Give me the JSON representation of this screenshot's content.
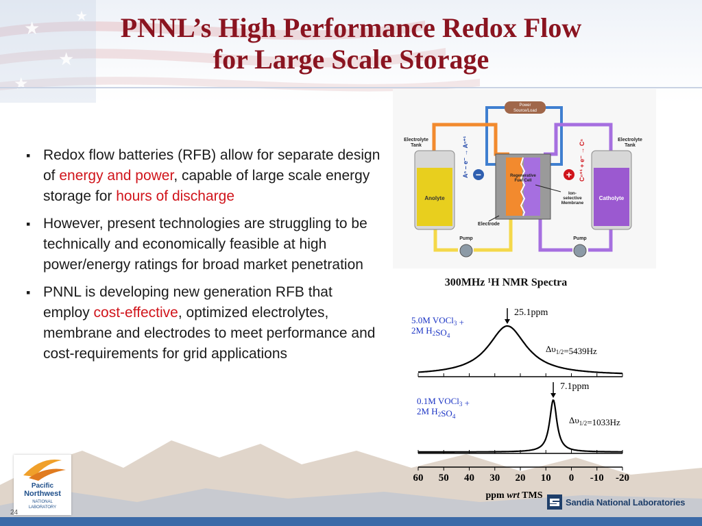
{
  "slide": {
    "title_line1": "PNNL’s High Performance Redox Flow",
    "title_line2": "for Large Scale Storage",
    "page_number": "24"
  },
  "bullets": [
    {
      "parts": [
        {
          "text": "Redox flow batteries (RFB) allow for separate design of ",
          "highlight": false
        },
        {
          "text": "energy and power",
          "highlight": true
        },
        {
          "text": ", capable of large scale energy storage for ",
          "highlight": false
        },
        {
          "text": "hours of discharge",
          "highlight": true
        }
      ]
    },
    {
      "parts": [
        {
          "text": "However, present technologies are struggling to be technically and economically feasible at high power/energy ratings for broad market penetration",
          "highlight": false
        }
      ]
    },
    {
      "parts": [
        {
          "text": "PNNL is developing new generation RFB that employ ",
          "highlight": false
        },
        {
          "text": "cost-effective",
          "highlight": true
        },
        {
          "text": ", optimized electrolytes, membrane and electrodes to meet performance and cost-requirements for grid applications",
          "highlight": false
        }
      ]
    }
  ],
  "diagram": {
    "power_label_1": "Power",
    "power_label_2": "Source/Load",
    "left_tank_label_1": "Electrolyte",
    "left_tank_label_2": "Tank",
    "right_tank_label_1": "Electrolyte",
    "right_tank_label_2": "Tank",
    "anolyte": "Anolyte",
    "catholyte": "Catholyte",
    "cell_label_1": "Regenerative",
    "cell_label_2": "Fuel Cell",
    "membrane_label_1": "Ion-",
    "membrane_label_2": "selective",
    "membrane_label_3": "Membrane",
    "electrode": "Electrode",
    "pump_left": "Pump",
    "pump_right": "Pump",
    "anode_reaction": "Aⁿ – e⁻ → Aⁿ⁺¹",
    "cathode_reaction": "Cⁿ⁺¹ + e⁻ → Cⁿ",
    "minus_sign": "−",
    "plus_sign": "+",
    "colors": {
      "anolyte": "#e8cf1e",
      "catholyte": "#9b59d0",
      "orange_pipe": "#f28a2e",
      "blue_pipe": "#3f7fd0",
      "yellow_pipe": "#f4d84a",
      "purple_pipe": "#a66fe0"
    }
  },
  "chart_data": {
    "type": "line",
    "title": "300MHz ¹H NMR Spectra",
    "xlabel_pre": "ppm ",
    "xlabel_em": "wrt",
    "xlabel_post": " TMS",
    "x_ticks": [
      60,
      50,
      40,
      30,
      20,
      10,
      0,
      -10,
      -20
    ],
    "x_tick_labels": [
      "60",
      "50",
      "40",
      "30",
      "20",
      "10",
      "0",
      "-10",
      "-20"
    ],
    "xlim": [
      60,
      -20
    ],
    "series": [
      {
        "label_line1": "5.0M VOCl",
        "label_sub1": "3",
        "label_tail1": " +",
        "label_line2": "2M H",
        "label_sub2": "2",
        "label_mid2": "SO",
        "label_sub3": "4",
        "peak_ppm": 25.1,
        "peak_label": "25.1ppm",
        "width_pre": "Δυ",
        "width_sub": "1/2",
        "width_post": "=5439Hz",
        "width_hz": 5439
      },
      {
        "label_line1": "0.1M VOCl",
        "label_sub1": "3",
        "label_tail1": " +",
        "label_line2": "2M H",
        "label_sub2": "2",
        "label_mid2": "SO",
        "label_sub3": "4",
        "peak_ppm": 7.1,
        "peak_label": "7.1ppm",
        "width_pre": "Δυ",
        "width_sub": "1/2",
        "width_post": "=1033Hz",
        "width_hz": 1033
      }
    ]
  },
  "logos": {
    "pnnl_line1": "Pacific",
    "pnnl_line2": "Northwest",
    "pnnl_line3": "NATIONAL",
    "pnnl_line4": "LABORATORY",
    "sandia": "Sandia National Laboratories"
  }
}
